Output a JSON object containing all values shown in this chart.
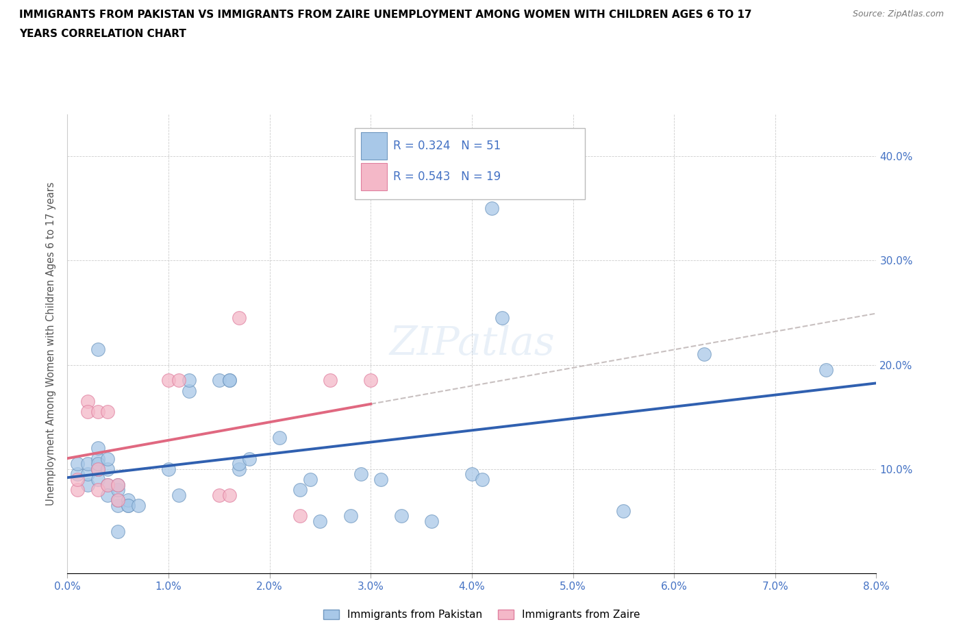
{
  "title_line1": "IMMIGRANTS FROM PAKISTAN VS IMMIGRANTS FROM ZAIRE UNEMPLOYMENT AMONG WOMEN WITH CHILDREN AGES 6 TO 17",
  "title_line2": "YEARS CORRELATION CHART",
  "source": "Source: ZipAtlas.com",
  "ylabel": "Unemployment Among Women with Children Ages 6 to 17 years",
  "xlim": [
    0.0,
    0.08
  ],
  "ylim": [
    0.0,
    0.44
  ],
  "xtick_labels": [
    "0.0%",
    "1.0%",
    "2.0%",
    "3.0%",
    "4.0%",
    "5.0%",
    "6.0%",
    "7.0%",
    "8.0%"
  ],
  "xtick_vals": [
    0.0,
    0.01,
    0.02,
    0.03,
    0.04,
    0.05,
    0.06,
    0.07,
    0.08
  ],
  "ytick_labels": [
    "10.0%",
    "20.0%",
    "30.0%",
    "40.0%"
  ],
  "ytick_vals": [
    0.1,
    0.2,
    0.3,
    0.4
  ],
  "r_pakistan": 0.324,
  "n_pakistan": 51,
  "r_zaire": 0.543,
  "n_zaire": 19,
  "pakistan_color": "#a8c8e8",
  "zaire_color": "#f4b8c8",
  "pakistan_edge_color": "#7098c0",
  "zaire_edge_color": "#e080a0",
  "pakistan_line_color": "#3060b0",
  "zaire_line_color": "#e06880",
  "trendline_ext_color": "#c8c0c0",
  "legend_border_color": "#bbbbbb",
  "legend_text_color": "#4472c4",
  "pakistan_x": [
    0.001,
    0.001,
    0.002,
    0.002,
    0.002,
    0.003,
    0.003,
    0.003,
    0.003,
    0.003,
    0.003,
    0.003,
    0.004,
    0.004,
    0.004,
    0.004,
    0.005,
    0.005,
    0.005,
    0.005,
    0.005,
    0.006,
    0.006,
    0.006,
    0.007,
    0.01,
    0.011,
    0.012,
    0.012,
    0.015,
    0.016,
    0.016,
    0.017,
    0.017,
    0.018,
    0.021,
    0.023,
    0.024,
    0.025,
    0.028,
    0.029,
    0.031,
    0.033,
    0.036,
    0.04,
    0.041,
    0.042,
    0.043,
    0.055,
    0.063,
    0.075
  ],
  "pakistan_y": [
    0.095,
    0.105,
    0.085,
    0.095,
    0.105,
    0.09,
    0.1,
    0.1,
    0.11,
    0.12,
    0.215,
    0.105,
    0.085,
    0.075,
    0.1,
    0.11,
    0.04,
    0.065,
    0.07,
    0.08,
    0.085,
    0.065,
    0.07,
    0.065,
    0.065,
    0.1,
    0.075,
    0.175,
    0.185,
    0.185,
    0.185,
    0.185,
    0.1,
    0.105,
    0.11,
    0.13,
    0.08,
    0.09,
    0.05,
    0.055,
    0.095,
    0.09,
    0.055,
    0.05,
    0.095,
    0.09,
    0.35,
    0.245,
    0.06,
    0.21,
    0.195
  ],
  "zaire_x": [
    0.001,
    0.001,
    0.002,
    0.002,
    0.003,
    0.003,
    0.003,
    0.004,
    0.004,
    0.005,
    0.005,
    0.01,
    0.011,
    0.015,
    0.016,
    0.017,
    0.023,
    0.026,
    0.03
  ],
  "zaire_y": [
    0.08,
    0.09,
    0.165,
    0.155,
    0.08,
    0.1,
    0.155,
    0.155,
    0.085,
    0.085,
    0.07,
    0.185,
    0.185,
    0.075,
    0.075,
    0.245,
    0.055,
    0.185,
    0.185
  ],
  "watermark": "ZIPatlas"
}
